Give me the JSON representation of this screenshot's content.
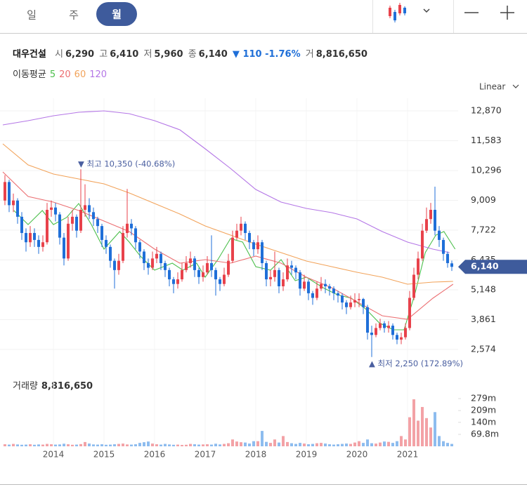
{
  "tabs": [
    "일",
    "주",
    "월"
  ],
  "header": {
    "name": "대우건설",
    "items": [
      {
        "label": "시",
        "value": "6,290"
      },
      {
        "label": "고",
        "value": "6,410"
      },
      {
        "label": "저",
        "value": "5,960"
      },
      {
        "label": "종",
        "value": "6,140"
      }
    ],
    "change": "▼ 110 -1.76%",
    "volume": {
      "label": "거",
      "value": "8,816,650"
    }
  },
  "chart_data": {
    "type": "candlestick",
    "scale": "Linear",
    "ma_title": "이동평균",
    "grid": true,
    "xlim": [
      2013,
      2022
    ],
    "xticks": [
      2014,
      2015,
      2016,
      2017,
      2018,
      2019,
      2020,
      2021
    ],
    "ylim": [
      1605,
      13415
    ],
    "yticks": [
      {
        "value": 12870,
        "label": "12,870"
      },
      {
        "value": 11583,
        "label": "11,583"
      },
      {
        "value": 10296,
        "label": "10,296"
      },
      {
        "value": 9009,
        "label": "9,009"
      },
      {
        "value": 7722,
        "label": "7,722"
      },
      {
        "value": 6435,
        "label": "6,435"
      },
      {
        "value": 5148,
        "label": "5,148"
      },
      {
        "value": 3861,
        "label": "3,861"
      },
      {
        "value": 2574,
        "label": "2,574"
      }
    ],
    "up_color": "#e8424b",
    "down_color": "#1f6fd8",
    "candles": {
      "open": [
        9000,
        9800,
        8800,
        9000,
        8300,
        7600,
        7200,
        7600,
        7300,
        7000,
        7200,
        8600,
        8700,
        8400,
        7400,
        6500,
        8000,
        8300,
        7700,
        8600,
        8800,
        8500,
        8200,
        7900,
        7300,
        7000,
        6400,
        6000,
        6400,
        7600,
        8000,
        7800,
        7200,
        6800,
        6300,
        6100,
        6500,
        6700,
        6300,
        6000,
        5600,
        5400,
        5600,
        6000,
        6300,
        6500,
        6000,
        5700,
        5900,
        6300,
        6000,
        5600,
        5400,
        5800,
        6400,
        7400,
        7700,
        8000,
        7600,
        7200,
        6900,
        7200,
        6300,
        5600,
        5700,
        6000,
        5300,
        5600,
        6200,
        6100,
        5900,
        5200,
        5500,
        5000,
        4800,
        5200,
        5400,
        5300,
        5200,
        5000,
        4900,
        4600,
        4400,
        4600,
        4700,
        4750,
        4400,
        3300,
        3200,
        3500,
        3700,
        3500,
        3600,
        3200,
        3000,
        3100,
        3500,
        4800,
        5800,
        6500,
        7700,
        8200,
        8600,
        7700,
        7300,
        6700,
        6290
      ],
      "high": [
        10100,
        9900,
        9300,
        9100,
        8500,
        7800,
        7900,
        7800,
        7500,
        7500,
        8900,
        9000,
        8900,
        8500,
        7600,
        8300,
        8600,
        8400,
        10350,
        9700,
        9100,
        8700,
        8300,
        8000,
        7500,
        7100,
        6500,
        6700,
        7900,
        9500,
        8200,
        7900,
        7300,
        6900,
        6500,
        6800,
        7000,
        6800,
        6400,
        6100,
        5700,
        5900,
        6300,
        6600,
        6800,
        6600,
        6100,
        6200,
        6600,
        7500,
        6100,
        5700,
        6100,
        6700,
        7700,
        8000,
        8300,
        8100,
        7700,
        7300,
        7500,
        7300,
        6400,
        6000,
        6800,
        6100,
        5900,
        6500,
        6400,
        6200,
        6000,
        5800,
        5600,
        5100,
        5500,
        5700,
        5600,
        5400,
        5300,
        5100,
        5000,
        4700,
        4900,
        5000,
        5000,
        4800,
        4500,
        3600,
        3700,
        3900,
        3800,
        3800,
        3700,
        3300,
        3300,
        3700,
        5100,
        6100,
        6800,
        8000,
        8700,
        8900,
        9600,
        7900,
        7400,
        6800,
        6410
      ],
      "low": [
        8800,
        8500,
        8500,
        8000,
        7300,
        6800,
        7000,
        7000,
        6700,
        6800,
        7100,
        8300,
        8100,
        7100,
        6200,
        6400,
        7700,
        7400,
        7600,
        8300,
        8200,
        7900,
        7600,
        7000,
        6700,
        6100,
        5200,
        5800,
        6300,
        7400,
        7500,
        6900,
        6500,
        6000,
        5800,
        6000,
        6300,
        6000,
        5700,
        5300,
        5000,
        5200,
        5500,
        5900,
        6100,
        5700,
        5400,
        5500,
        5800,
        5700,
        4900,
        5100,
        5300,
        5700,
        6300,
        7300,
        7500,
        7300,
        6900,
        6600,
        6700,
        6000,
        5300,
        5300,
        5500,
        5000,
        5100,
        5500,
        5800,
        5600,
        4900,
        5100,
        4700,
        4500,
        4700,
        5100,
        5000,
        4900,
        4700,
        4600,
        4300,
        4100,
        4300,
        4400,
        4400,
        4100,
        3000,
        2250,
        3100,
        3400,
        3300,
        3300,
        3000,
        2800,
        2800,
        3000,
        3400,
        4700,
        5600,
        6400,
        7600,
        8000,
        7500,
        7000,
        6400,
        6100,
        5960
      ],
      "close": [
        9800,
        8800,
        9000,
        8300,
        7600,
        7200,
        7600,
        7300,
        7000,
        7200,
        8600,
        8700,
        8400,
        7400,
        6500,
        8000,
        8300,
        7700,
        8600,
        8800,
        8500,
        8200,
        7900,
        7300,
        7000,
        6400,
        6000,
        6400,
        7600,
        8000,
        7800,
        7200,
        6800,
        6300,
        6100,
        6500,
        6700,
        6300,
        6000,
        5600,
        5400,
        5600,
        6000,
        6300,
        6500,
        6000,
        5700,
        5900,
        6300,
        6000,
        5600,
        5400,
        5800,
        6400,
        7400,
        7700,
        8000,
        7600,
        7200,
        6900,
        7200,
        6300,
        5600,
        5700,
        6000,
        5300,
        5600,
        6200,
        6100,
        5900,
        5200,
        5500,
        5000,
        4800,
        5200,
        5400,
        5300,
        5200,
        5000,
        4900,
        4600,
        4400,
        4600,
        4700,
        4750,
        4400,
        3300,
        3200,
        3500,
        3700,
        3500,
        3600,
        3200,
        3000,
        3100,
        3500,
        4800,
        5800,
        6500,
        7700,
        8200,
        8600,
        7700,
        7300,
        6700,
        6300,
        6140
      ]
    },
    "moving_averages": [
      {
        "name": "5",
        "color": "#4cbf4c",
        "x": [
          2013.22,
          2013.5,
          2013.78,
          2014,
          2014.26,
          2014.5,
          2014.75,
          2015,
          2015.31,
          2015.5,
          2015.72,
          2016,
          2016.35,
          2016.56,
          2016.83,
          2017,
          2017.25,
          2017.5,
          2017.74,
          2018,
          2018.29,
          2018.5,
          2018.78,
          2019,
          2019.33,
          2019.61,
          2019.89,
          2020.17,
          2020.44,
          2020.72,
          2020.93,
          2021.14,
          2021.35,
          2021.56,
          2021.72,
          2021.94
        ],
        "values": [
          8570,
          7965,
          8570,
          7965,
          8268,
          8873,
          7965,
          6905,
          7662,
          7208,
          6602,
          5997,
          6299,
          5997,
          6299,
          5694,
          6451,
          7359,
          7208,
          6148,
          5997,
          6451,
          5542,
          5694,
          5239,
          4937,
          4785,
          4331,
          3725,
          3423,
          3423,
          4937,
          6753,
          7510,
          7662,
          6905
        ]
      },
      {
        "name": "20",
        "color": "#ec6f72",
        "x": [
          2013,
          2013.5,
          2014,
          2014.5,
          2015,
          2015.5,
          2016,
          2016.5,
          2017,
          2017.5,
          2018,
          2018.5,
          2019,
          2019.5,
          2020,
          2020.5,
          2021,
          2021.5,
          2021.9
        ],
        "values": [
          10236,
          9176,
          8934,
          8570,
          8116,
          7662,
          6905,
          6299,
          6451,
          6299,
          6602,
          6299,
          5694,
          5239,
          4634,
          4028,
          3877,
          4785,
          5391
        ]
      },
      {
        "name": "60",
        "color": "#f2a35a",
        "x": [
          2013,
          2013.5,
          2014,
          2014.5,
          2015,
          2015.5,
          2016,
          2016.5,
          2017,
          2017.5,
          2018,
          2018.5,
          2019,
          2019.5,
          2020,
          2020.5,
          2021,
          2021.5,
          2021.9
        ],
        "values": [
          11447,
          10539,
          10145,
          9933,
          9721,
          9327,
          8873,
          8419,
          7904,
          7510,
          7117,
          6753,
          6390,
          6148,
          5906,
          5694,
          5391,
          5482,
          5512
        ]
      },
      {
        "name": "120",
        "color": "#b476e6",
        "x": [
          2013,
          2013.5,
          2014,
          2014.5,
          2015,
          2015.5,
          2016,
          2016.5,
          2017,
          2017.5,
          2018,
          2018.5,
          2019,
          2019.5,
          2020,
          2020.5,
          2021,
          2021.5,
          2021.83
        ],
        "values": [
          12264,
          12446,
          12658,
          12810,
          12870,
          12749,
          12446,
          12052,
          11235,
          10387,
          9479,
          8934,
          8661,
          8479,
          8207,
          7662,
          7208,
          6905,
          6753
        ]
      }
    ],
    "annotations": {
      "high": {
        "value": 10350,
        "label": "▼ 최고 10,350 (-40.68%)"
      },
      "low": {
        "value": 2250,
        "label": "▲ 최저 2,250 (172.89%)"
      }
    },
    "last_label": "6,140",
    "tag_color": "#3e5b9c",
    "volume": {
      "title": "거래량",
      "total": "8,816,650",
      "ylim": [
        0,
        312
      ],
      "yticks": [
        {
          "value": 279,
          "label": "279m"
        },
        {
          "value": 209,
          "label": "209m"
        },
        {
          "value": 140,
          "label": "140m"
        },
        {
          "value": 69.8,
          "label": "69.8m"
        }
      ],
      "up_color": "#f3a2a6",
      "down_color": "#8dbcef",
      "values": [
        12,
        10,
        14,
        11,
        9,
        10,
        12,
        9,
        11,
        10,
        14,
        12,
        10,
        11,
        15,
        12,
        9,
        10,
        13,
        25,
        16,
        11,
        10,
        12,
        9,
        10,
        12,
        14,
        16,
        11,
        10,
        12,
        20,
        24,
        28,
        16,
        12,
        10,
        14,
        11,
        9,
        10,
        8,
        9,
        14,
        12,
        10,
        11,
        12,
        10,
        15,
        11,
        14,
        18,
        40,
        28,
        24,
        22,
        16,
        30,
        30,
        90,
        26,
        20,
        40,
        22,
        60,
        25,
        18,
        14,
        20,
        16,
        12,
        14,
        18,
        20,
        16,
        12,
        10,
        12,
        14,
        16,
        14,
        22,
        30,
        20,
        40,
        18,
        16,
        22,
        28,
        26,
        20,
        30,
        60,
        40,
        170,
        275,
        150,
        230,
        165,
        110,
        200,
        60,
        30,
        20,
        14
      ]
    }
  }
}
